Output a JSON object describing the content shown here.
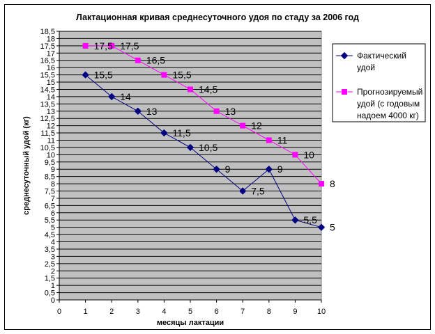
{
  "chart_data": {
    "type": "line",
    "title": "Лактационная кривая среднесуточного удоя по стаду за 2006 год",
    "xlabel": "месяцы лактации",
    "ylabel": "среднесуточный удой (кг)",
    "xlim": [
      0,
      10
    ],
    "ylim": [
      0,
      18.5
    ],
    "x_ticks": [
      "0",
      "1",
      "2",
      "3",
      "4",
      "5",
      "6",
      "7",
      "8",
      "9",
      "10"
    ],
    "y_ticks": [
      "0",
      "0,5",
      "1",
      "1,5",
      "2",
      "2,5",
      "3",
      "3,5",
      "4",
      "4,5",
      "5",
      "5,5",
      "6",
      "6,5",
      "7",
      "7,5",
      "8",
      "8,5",
      "9",
      "9,5",
      "10",
      "10,5",
      "11",
      "11,5",
      "12",
      "12,5",
      "13",
      "13,5",
      "14",
      "14,5",
      "15",
      "15,5",
      "16",
      "16,5",
      "17",
      "17,5",
      "18",
      "18,5"
    ],
    "grid": true,
    "legend_position": "right",
    "plot_background": "#c0c0c0",
    "series": [
      {
        "name": "Фактический удой",
        "legend_lines": [
          "Фактический",
          "удой"
        ],
        "color": "#000080",
        "marker": "diamond",
        "x": [
          1,
          2,
          3,
          4,
          5,
          6,
          7,
          8,
          9,
          10
        ],
        "values": [
          15.5,
          14,
          13,
          11.5,
          10.5,
          9,
          7.5,
          9,
          5.5,
          5
        ],
        "labels": [
          "15,5",
          "14",
          "13",
          "11,5",
          "10,5",
          "9",
          "7,5",
          "9",
          "5,5",
          "5"
        ]
      },
      {
        "name": "Прогнозируемый удой (с годовым надоем 4000 кг)",
        "legend_lines": [
          "Прогнозируемый",
          "удой (с годовым",
          "надоем 4000 кг)"
        ],
        "color": "#ff00ff",
        "marker": "square",
        "x": [
          1,
          2,
          3,
          4,
          5,
          6,
          7,
          8,
          9,
          10
        ],
        "values": [
          17.5,
          17.5,
          16.5,
          15.5,
          14.5,
          13,
          12,
          11,
          10,
          8
        ],
        "labels": [
          "17,5",
          "17,5",
          "16,5",
          "15,5",
          "14,5",
          "13",
          "12",
          "11",
          "10",
          "8"
        ]
      }
    ]
  }
}
